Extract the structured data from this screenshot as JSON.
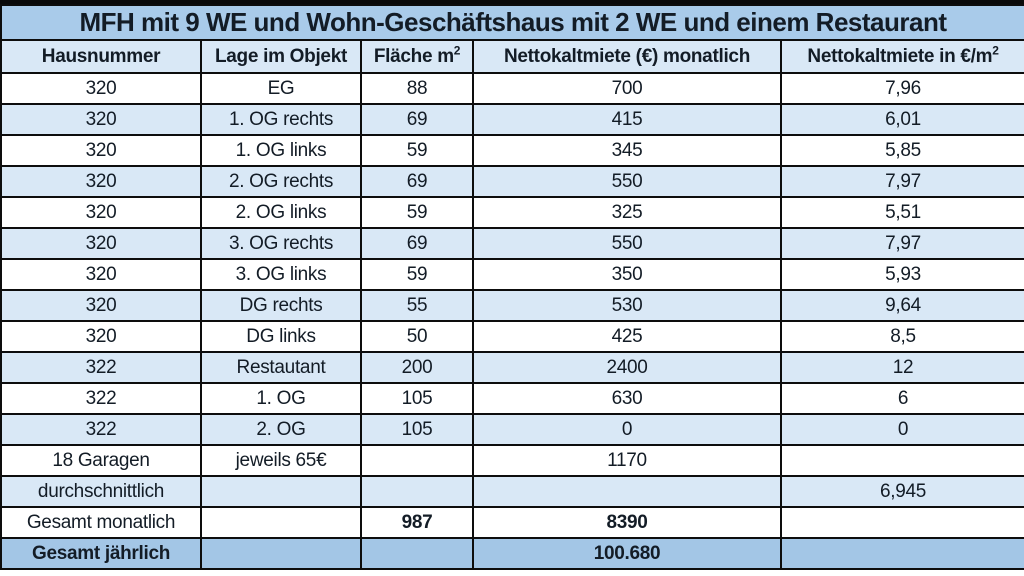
{
  "chart_data": {
    "type": "table",
    "title": "MFH mit 9 WE und Wohn-Geschäftshaus mit 2 WE und einem Restaurant",
    "columns": [
      {
        "label": "Hausnummer"
      },
      {
        "label": "Lage im Objekt"
      },
      {
        "label": "Fläche m",
        "sup": "2"
      },
      {
        "label": "Nettokaltmiete (€) monatlich"
      },
      {
        "label": "Nettokaltmiete in €/m",
        "sup": "2"
      }
    ],
    "rows": [
      {
        "cells": [
          "320",
          "EG",
          "88",
          "700",
          "7,96"
        ],
        "shade": "white",
        "bold_cells": []
      },
      {
        "cells": [
          "320",
          "1. OG rechts",
          "69",
          "415",
          "6,01"
        ],
        "shade": "blue",
        "bold_cells": []
      },
      {
        "cells": [
          "320",
          "1. OG links",
          "59",
          "345",
          "5,85"
        ],
        "shade": "white",
        "bold_cells": []
      },
      {
        "cells": [
          "320",
          "2. OG rechts",
          "69",
          "550",
          "7,97"
        ],
        "shade": "blue",
        "bold_cells": []
      },
      {
        "cells": [
          "320",
          "2. OG links",
          "59",
          "325",
          "5,51"
        ],
        "shade": "white",
        "bold_cells": []
      },
      {
        "cells": [
          "320",
          "3. OG rechts",
          "69",
          "550",
          "7,97"
        ],
        "shade": "blue",
        "bold_cells": []
      },
      {
        "cells": [
          "320",
          "3. OG links",
          "59",
          "350",
          "5,93"
        ],
        "shade": "white",
        "bold_cells": []
      },
      {
        "cells": [
          "320",
          "DG rechts",
          "55",
          "530",
          "9,64"
        ],
        "shade": "blue",
        "bold_cells": []
      },
      {
        "cells": [
          "320",
          "DG links",
          "50",
          "425",
          "8,5"
        ],
        "shade": "white",
        "bold_cells": []
      },
      {
        "cells": [
          "322",
          "Restautant",
          "200",
          "2400",
          "12"
        ],
        "shade": "blue",
        "bold_cells": []
      },
      {
        "cells": [
          "322",
          "1. OG",
          "105",
          "630",
          "6"
        ],
        "shade": "white",
        "bold_cells": []
      },
      {
        "cells": [
          "322",
          "2. OG",
          "105",
          "0",
          "0"
        ],
        "shade": "blue",
        "bold_cells": []
      },
      {
        "cells": [
          "18 Garagen",
          "jeweils 65€",
          "",
          "1170",
          ""
        ],
        "shade": "white",
        "bold_cells": []
      },
      {
        "cells": [
          "durchschnittlich",
          "",
          "",
          "",
          "6,945"
        ],
        "shade": "blue",
        "bold_cells": []
      },
      {
        "cells": [
          "Gesamt monatlich",
          "",
          "987",
          "8390",
          ""
        ],
        "shade": "white",
        "bold_cells": [
          2,
          3
        ]
      },
      {
        "cells": [
          "Gesamt jährlich",
          "",
          "",
          "100.680",
          ""
        ],
        "shade": "total",
        "bold_cells": [
          0,
          3
        ]
      }
    ]
  },
  "colors": {
    "title_bg": "#a9cbea",
    "header_bg": "#d9e8f6",
    "row_white": "#ffffff",
    "row_blue": "#d9e8f6",
    "total_bg": "#a3c6e6",
    "border": "#0d0d0d",
    "text": "#131c26"
  }
}
